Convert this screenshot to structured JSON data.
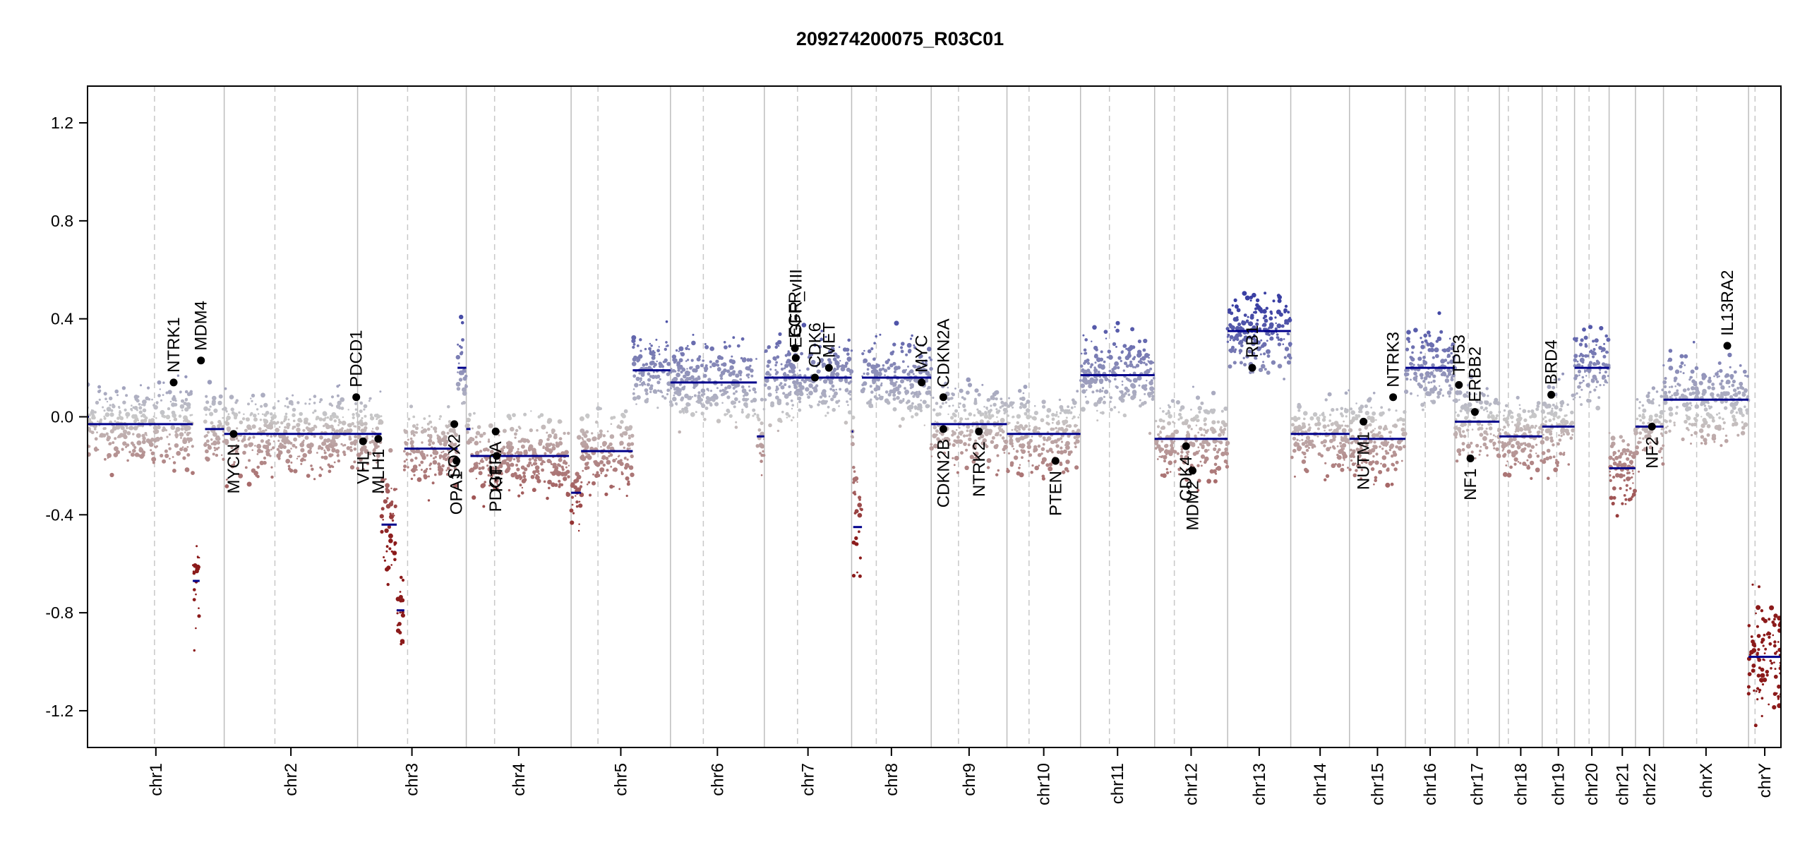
{
  "chart_data": {
    "type": "scatter",
    "title": "209274200075_R03C01",
    "xlabel": "",
    "ylabel": "",
    "ylim": [
      -1.35,
      1.35
    ],
    "y_ticks": [
      "1.2",
      "0.8",
      "0.4",
      "0.0",
      "-0.4",
      "-0.8",
      "-1.2"
    ],
    "grid": "chromosome boundaries (solid) and centromeres (dashed)",
    "colors": {
      "gain": "#3a3fa3",
      "neutral": "#c8c8c8",
      "loss": "#8b1a1a",
      "segment": "#00008b",
      "gene": "#000000"
    },
    "chromosomes": [
      {
        "name": "chr1",
        "length": 249,
        "centromere": 0.49
      },
      {
        "name": "chr2",
        "length": 243,
        "centromere": 0.38
      },
      {
        "name": "chr3",
        "length": 198,
        "centromere": 0.46
      },
      {
        "name": "chr4",
        "length": 191,
        "centromere": 0.27
      },
      {
        "name": "chr5",
        "length": 181,
        "centromere": 0.27
      },
      {
        "name": "chr6",
        "length": 171,
        "centromere": 0.35
      },
      {
        "name": "chr7",
        "length": 159,
        "centromere": 0.38
      },
      {
        "name": "chr8",
        "length": 145,
        "centromere": 0.31
      },
      {
        "name": "chr9",
        "length": 138,
        "centromere": 0.36
      },
      {
        "name": "chr10",
        "length": 134,
        "centromere": 0.3
      },
      {
        "name": "chr11",
        "length": 135,
        "centromere": 0.39
      },
      {
        "name": "chr12",
        "length": 133,
        "centromere": 0.27
      },
      {
        "name": "chr13",
        "length": 115,
        "centromere": 0.0
      },
      {
        "name": "chr14",
        "length": 107,
        "centromere": 0.0
      },
      {
        "name": "chr15",
        "length": 102,
        "centromere": 0.0
      },
      {
        "name": "chr16",
        "length": 90,
        "centromere": 0.4
      },
      {
        "name": "chr17",
        "length": 81,
        "centromere": 0.3
      },
      {
        "name": "chr18",
        "length": 78,
        "centromere": 0.21
      },
      {
        "name": "chr19",
        "length": 59,
        "centromere": 0.45
      },
      {
        "name": "chr20",
        "length": 63,
        "centromere": 0.42
      },
      {
        "name": "chr21",
        "length": 48,
        "centromere": 0.0
      },
      {
        "name": "chr22",
        "length": 51,
        "centromere": 0.0
      },
      {
        "name": "chrX",
        "length": 155,
        "centromere": 0.39
      },
      {
        "name": "chrY",
        "length": 59,
        "centromere": 0.2
      }
    ],
    "segments": [
      {
        "chr": "chr1",
        "start": 0.0,
        "end": 0.77,
        "value": -0.03
      },
      {
        "chr": "chr1",
        "start": 0.77,
        "end": 0.82,
        "value": -0.67
      },
      {
        "chr": "chr1",
        "start": 0.86,
        "end": 1.0,
        "value": -0.05
      },
      {
        "chr": "chr1",
        "start": 0.0,
        "end": 0.01,
        "value": 0.0
      },
      {
        "chr": "chr1",
        "start": 0.0,
        "end": 0.0,
        "value": 0.0
      },
      {
        "chr": "chr2",
        "start": 0.0,
        "end": 1.0,
        "value": -0.07
      },
      {
        "chr": "chr3",
        "start": 0.0,
        "end": 0.22,
        "value": -0.07
      },
      {
        "chr": "chr3",
        "start": 0.22,
        "end": 0.36,
        "value": -0.44
      },
      {
        "chr": "chr3",
        "start": 0.36,
        "end": 0.43,
        "value": -0.79
      },
      {
        "chr": "chr3",
        "start": 0.43,
        "end": 0.92,
        "value": -0.13
      },
      {
        "chr": "chr3",
        "start": 0.92,
        "end": 1.0,
        "value": 0.2
      },
      {
        "chr": "chr4",
        "start": 0.0,
        "end": 0.04,
        "value": -0.05
      },
      {
        "chr": "chr4",
        "start": 0.04,
        "end": 0.98,
        "value": -0.16
      },
      {
        "chr": "chr5",
        "start": 0.0,
        "end": 0.1,
        "value": -0.31
      },
      {
        "chr": "chr5",
        "start": 0.1,
        "end": 0.62,
        "value": -0.14
      },
      {
        "chr": "chr5",
        "start": 0.62,
        "end": 1.0,
        "value": 0.19
      },
      {
        "chr": "chr6",
        "start": 0.0,
        "end": 0.92,
        "value": 0.14
      },
      {
        "chr": "chr6",
        "start": 0.92,
        "end": 1.0,
        "value": -0.08
      },
      {
        "chr": "chr7",
        "start": 0.0,
        "end": 1.0,
        "value": 0.16
      },
      {
        "chr": "chr8",
        "start": 0.0,
        "end": 0.02,
        "value": -0.06
      },
      {
        "chr": "chr8",
        "start": 0.02,
        "end": 0.13,
        "value": -0.45
      },
      {
        "chr": "chr8",
        "start": 0.13,
        "end": 1.0,
        "value": 0.16
      },
      {
        "chr": "chr9",
        "start": 0.0,
        "end": 1.0,
        "value": -0.03
      },
      {
        "chr": "chr10",
        "start": 0.0,
        "end": 1.0,
        "value": -0.07
      },
      {
        "chr": "chr11",
        "start": 0.0,
        "end": 1.0,
        "value": 0.17
      },
      {
        "chr": "chr12",
        "start": 0.0,
        "end": 1.0,
        "value": -0.09
      },
      {
        "chr": "chr13",
        "start": 0.0,
        "end": 1.0,
        "value": 0.35
      },
      {
        "chr": "chr14",
        "start": 0.0,
        "end": 1.0,
        "value": -0.07
      },
      {
        "chr": "chr15",
        "start": 0.0,
        "end": 1.0,
        "value": -0.09
      },
      {
        "chr": "chr16",
        "start": 0.0,
        "end": 1.0,
        "value": 0.2
      },
      {
        "chr": "chr17",
        "start": 0.0,
        "end": 1.0,
        "value": -0.02
      },
      {
        "chr": "chr18",
        "start": 0.0,
        "end": 1.0,
        "value": -0.08
      },
      {
        "chr": "chr19",
        "start": 0.0,
        "end": 1.0,
        "value": -0.04
      },
      {
        "chr": "chr20",
        "start": 0.0,
        "end": 1.0,
        "value": 0.2
      },
      {
        "chr": "chr21",
        "start": 0.0,
        "end": 1.0,
        "value": -0.21
      },
      {
        "chr": "chr22",
        "start": 0.0,
        "end": 1.0,
        "value": -0.04
      },
      {
        "chr": "chrX",
        "start": 0.0,
        "end": 1.0,
        "value": 0.07
      },
      {
        "chr": "chrY",
        "start": 0.0,
        "end": 1.0,
        "value": -0.98
      }
    ],
    "genes": [
      {
        "name": "NTRK1",
        "chr": "chr1",
        "pos": 0.63,
        "value": 0.14
      },
      {
        "name": "MDM4",
        "chr": "chr1",
        "pos": 0.83,
        "value": 0.23
      },
      {
        "name": "MYCN",
        "chr": "chr2",
        "pos": 0.07,
        "value": -0.07
      },
      {
        "name": "PDCD1",
        "chr": "chr2",
        "pos": 0.99,
        "value": 0.08
      },
      {
        "name": "VHL",
        "chr": "chr3",
        "pos": 0.05,
        "value": -0.1
      },
      {
        "name": "MLH1",
        "chr": "chr3",
        "pos": 0.19,
        "value": -0.09
      },
      {
        "name": "SOX2",
        "chr": "chr3",
        "pos": 0.89,
        "value": -0.03
      },
      {
        "name": "OPA1",
        "chr": "chr3",
        "pos": 0.91,
        "value": -0.18
      },
      {
        "name": "PDGFRA",
        "chr": "chr4",
        "pos": 0.28,
        "value": -0.06
      },
      {
        "name": "KIT",
        "chr": "chr4",
        "pos": 0.29,
        "value": -0.16
      },
      {
        "name": "EGFR",
        "chr": "chr7",
        "pos": 0.35,
        "value": 0.28
      },
      {
        "name": "EGFR_vIII",
        "chr": "chr7",
        "pos": 0.36,
        "value": 0.24
      },
      {
        "name": "MET",
        "chr": "chr7",
        "pos": 0.74,
        "value": 0.2
      },
      {
        "name": "CDK6",
        "chr": "chr7",
        "pos": 0.58,
        "value": 0.16
      },
      {
        "name": "MYC",
        "chr": "chr8",
        "pos": 0.88,
        "value": 0.14
      },
      {
        "name": "CDKN2A",
        "chr": "chr9",
        "pos": 0.16,
        "value": 0.08
      },
      {
        "name": "CDKN2B",
        "chr": "chr9",
        "pos": 0.16,
        "value": -0.05
      },
      {
        "name": "NTRK2",
        "chr": "chr9",
        "pos": 0.63,
        "value": -0.06
      },
      {
        "name": "PTEN",
        "chr": "chr10",
        "pos": 0.66,
        "value": -0.18
      },
      {
        "name": "CDK4",
        "chr": "chr12",
        "pos": 0.43,
        "value": -0.12
      },
      {
        "name": "MDM2",
        "chr": "chr12",
        "pos": 0.52,
        "value": -0.22
      },
      {
        "name": "RB1",
        "chr": "chr13",
        "pos": 0.39,
        "value": 0.2
      },
      {
        "name": "NUTM1",
        "chr": "chr15",
        "pos": 0.25,
        "value": -0.02
      },
      {
        "name": "NTRK3",
        "chr": "chr15",
        "pos": 0.78,
        "value": 0.08
      },
      {
        "name": "TP53",
        "chr": "chr17",
        "pos": 0.09,
        "value": 0.13
      },
      {
        "name": "NF1",
        "chr": "chr17",
        "pos": 0.35,
        "value": -0.17
      },
      {
        "name": "ERBB2",
        "chr": "chr17",
        "pos": 0.45,
        "value": 0.02
      },
      {
        "name": "BRD4",
        "chr": "chr19",
        "pos": 0.28,
        "value": 0.09
      },
      {
        "name": "NF2",
        "chr": "chr22",
        "pos": 0.59,
        "value": -0.04
      },
      {
        "name": "IL13RA2",
        "chr": "chrX",
        "pos": 0.75,
        "value": 0.29
      }
    ]
  }
}
